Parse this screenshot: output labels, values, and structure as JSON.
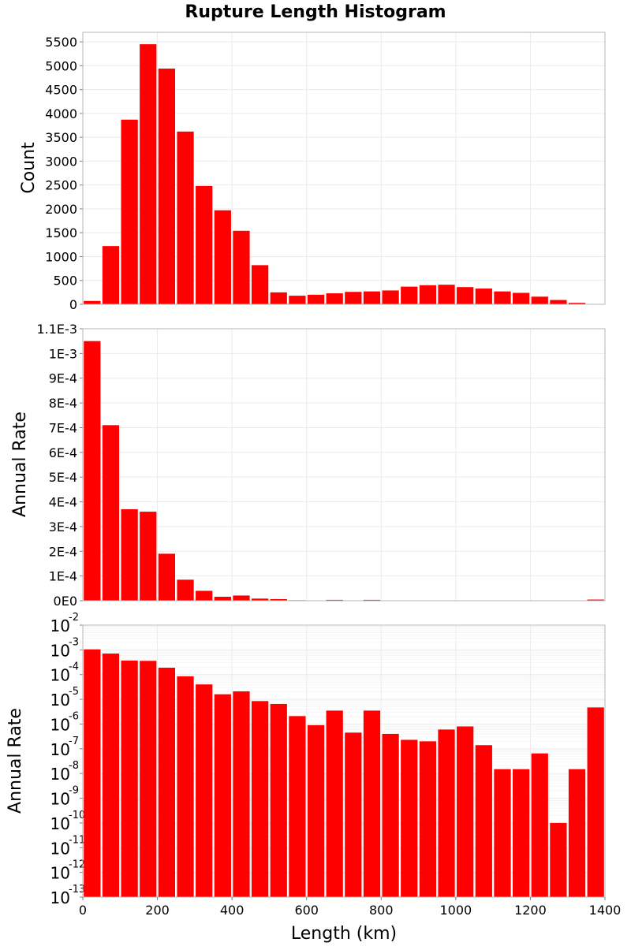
{
  "figure": {
    "title": "Rupture Length Histogram",
    "xlabel": "Length (km)"
  },
  "chart_data": [
    {
      "type": "bar",
      "name": "count",
      "ylabel": "Count",
      "bin_width": 50,
      "x": [
        0,
        50,
        100,
        150,
        200,
        250,
        300,
        350,
        400,
        450,
        500,
        550,
        600,
        650,
        700,
        750,
        800,
        850,
        900,
        950,
        1000,
        1050,
        1100,
        1150,
        1200,
        1250,
        1300,
        1350
      ],
      "values": [
        70,
        1220,
        3870,
        5450,
        4940,
        3620,
        2480,
        1970,
        1540,
        820,
        250,
        180,
        200,
        230,
        260,
        270,
        290,
        370,
        400,
        410,
        360,
        330,
        270,
        240,
        160,
        90,
        30,
        0
      ],
      "xlim": [
        0,
        1400
      ],
      "ylim": [
        0,
        5700
      ],
      "yticks": [
        0,
        500,
        1000,
        1500,
        2000,
        2500,
        3000,
        3500,
        4000,
        4500,
        5000,
        5500
      ],
      "ytick_labels": [
        "0",
        "500",
        "1000",
        "1500",
        "2000",
        "2500",
        "3000",
        "3500",
        "4000",
        "4500",
        "5000",
        "5500"
      ]
    },
    {
      "type": "bar",
      "name": "rate-linear",
      "ylabel": "Annual Rate",
      "bin_width": 50,
      "x": [
        0,
        50,
        100,
        150,
        200,
        250,
        300,
        350,
        400,
        450,
        500,
        550,
        600,
        650,
        700,
        750,
        800,
        850,
        900,
        950,
        1000,
        1050,
        1100,
        1150,
        1200,
        1250,
        1300,
        1350
      ],
      "values": [
        0.00105,
        0.00071,
        0.00037,
        0.00036,
        0.00019,
        8.5e-05,
        4e-05,
        1.6e-05,
        2.1e-05,
        8.5e-06,
        6.5e-06,
        2.1e-06,
        9e-07,
        3.5e-06,
        4.5e-07,
        3.5e-06,
        4e-07,
        2.3e-07,
        2e-07,
        6e-07,
        8e-07,
        1.4e-07,
        1.5e-08,
        1.5e-08,
        6.5e-08,
        1e-10,
        1.5e-08,
        4.7e-06
      ],
      "xlim": [
        0,
        1400
      ],
      "ylim": [
        0,
        0.0011
      ],
      "yticks": [
        0,
        0.0001,
        0.0002,
        0.0003,
        0.0004,
        0.0005,
        0.0006,
        0.0007,
        0.0008,
        0.0009,
        0.001,
        0.0011
      ],
      "ytick_labels": [
        "0E0",
        "1E-4",
        "2E-4",
        "3E-4",
        "4E-4",
        "5E-4",
        "6E-4",
        "7E-4",
        "8E-4",
        "9E-4",
        "1E-3",
        "1.1E-3"
      ]
    },
    {
      "type": "bar",
      "name": "rate-log",
      "ylabel": "Annual Rate",
      "yscale": "log",
      "bin_width": 50,
      "x": [
        0,
        50,
        100,
        150,
        200,
        250,
        300,
        350,
        400,
        450,
        500,
        550,
        600,
        650,
        700,
        750,
        800,
        850,
        900,
        950,
        1000,
        1050,
        1100,
        1150,
        1200,
        1250,
        1300,
        1350
      ],
      "values": [
        0.00105,
        0.00071,
        0.00037,
        0.00036,
        0.00019,
        8.5e-05,
        4e-05,
        1.6e-05,
        2.1e-05,
        8.5e-06,
        6.5e-06,
        2.1e-06,
        9e-07,
        3.5e-06,
        4.5e-07,
        3.5e-06,
        4e-07,
        2.3e-07,
        2e-07,
        6e-07,
        8e-07,
        1.4e-07,
        1.5e-08,
        1.5e-08,
        6.5e-08,
        1e-10,
        1.5e-08,
        4.7e-06
      ],
      "xlim": [
        0,
        1400
      ],
      "ylim_exp": [
        -13,
        -2
      ],
      "ytick_base": "10",
      "ytick_exponents": [
        "-13",
        "-12",
        "-11",
        "-10",
        "-9",
        "-8",
        "-7",
        "-6",
        "-5",
        "-4",
        "-3",
        "-2"
      ]
    }
  ],
  "x_axis": {
    "ticks": [
      0,
      200,
      400,
      600,
      800,
      1000,
      1200,
      1400
    ],
    "tick_labels": [
      "0",
      "200",
      "400",
      "600",
      "800",
      "1000",
      "1200",
      "1400"
    ]
  },
  "colors": {
    "bar": "#ff0000",
    "grid": "#ebebeb",
    "frame": "#b4b4b4"
  }
}
